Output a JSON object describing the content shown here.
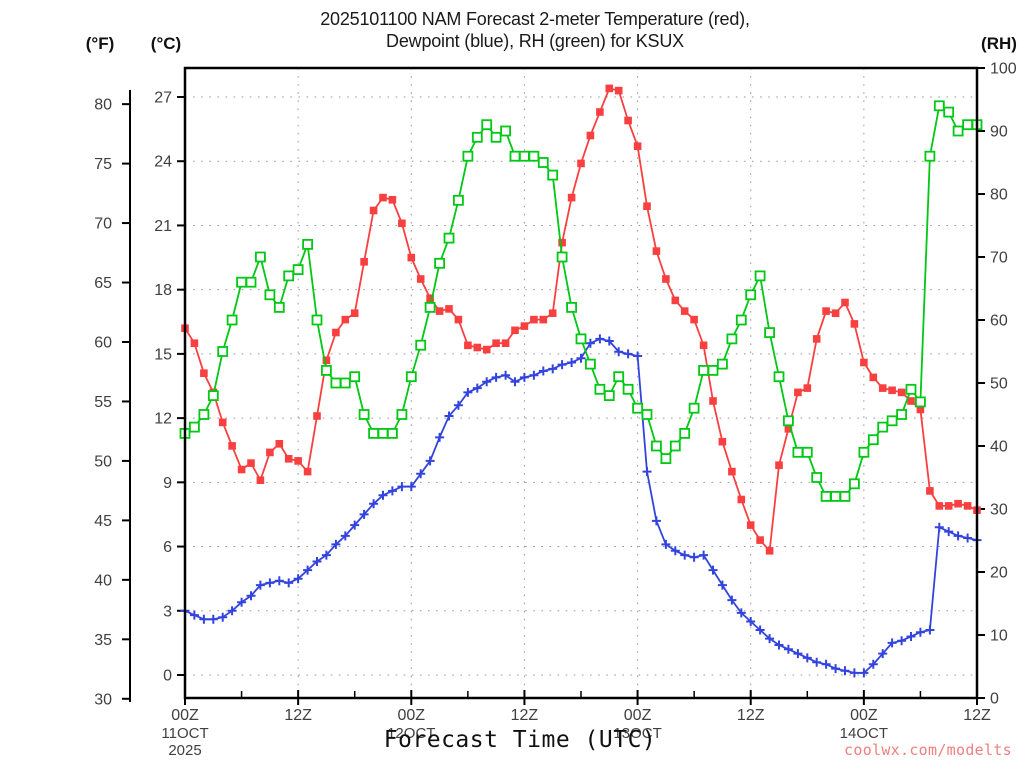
{
  "title_line1": "2025101100 NAM Forecast 2-meter Temperature (red),",
  "title_line2": "Dewpoint (blue), RH (green) for KSUX",
  "station": "KSUX",
  "model_run": "2025101100",
  "axis_headers": {
    "fahrenheit": "(°F)",
    "celsius": "(°C)",
    "rh": "(RH)"
  },
  "x_axis_title": "Forecast Time (UTC)",
  "watermark": "coolwx.com/modelts",
  "colors": {
    "temperature": "#f94040",
    "dewpoint": "#3344dd",
    "rh": "#00c814",
    "grid": "#999999",
    "axis": "#000000",
    "tick_label": "#404040",
    "watermark": "#f08080"
  },
  "chart_data": {
    "type": "line",
    "title": "2025101100 NAM Forecast 2-meter Temperature (red), Dewpoint (blue), RH (green) for KSUX",
    "x_hours_start": 0,
    "x_hours_step": 1,
    "x_hours_end": 84,
    "grid": true,
    "c_axis": {
      "min": 0,
      "max": 27,
      "step": 3,
      "ticks": [
        0,
        3,
        6,
        9,
        12,
        15,
        18,
        21,
        24,
        27
      ]
    },
    "f_axis": {
      "min": 30,
      "max": 80,
      "step": 5,
      "ticks": [
        30,
        35,
        40,
        45,
        50,
        55,
        60,
        65,
        70,
        75,
        80
      ]
    },
    "rh_axis": {
      "min": 0,
      "max": 100,
      "step": 10,
      "ticks": [
        0,
        10,
        20,
        30,
        40,
        50,
        60,
        70,
        80,
        90,
        100
      ]
    },
    "x_axis": {
      "major_hours": [
        0,
        12,
        24,
        36,
        48,
        60,
        72,
        84
      ],
      "major_labels": [
        "00Z",
        "12Z",
        "00Z",
        "12Z",
        "00Z",
        "12Z",
        "00Z",
        "12Z"
      ],
      "minor_hours": [
        6,
        18,
        30,
        42,
        54,
        66,
        78
      ],
      "date_labels": [
        {
          "text": "11OCT",
          "hour": 0
        },
        {
          "text": "12OCT",
          "hour": 24
        },
        {
          "text": "13OCT",
          "hour": 48
        },
        {
          "text": "14OCT",
          "hour": 72
        }
      ],
      "year_label": {
        "text": "2025",
        "hour": 0
      }
    },
    "series": [
      {
        "name": "2-meter Temperature",
        "unit": "C",
        "axis": "C",
        "color": "#f94040",
        "marker": "filled-square",
        "values": [
          16.2,
          15.5,
          14.1,
          13.2,
          11.8,
          10.7,
          9.6,
          9.9,
          9.1,
          10.4,
          10.8,
          10.1,
          10.0,
          9.5,
          12.1,
          14.7,
          16.0,
          16.6,
          16.9,
          19.3,
          21.7,
          22.3,
          22.2,
          21.1,
          19.5,
          18.5,
          17.6,
          17.0,
          17.1,
          16.6,
          15.4,
          15.3,
          15.2,
          15.5,
          15.5,
          16.1,
          16.3,
          16.6,
          16.6,
          16.9,
          20.2,
          22.3,
          23.9,
          25.2,
          26.3,
          27.4,
          27.3,
          25.9,
          24.7,
          21.9,
          19.8,
          18.5,
          17.5,
          17.0,
          16.6,
          15.4,
          12.8,
          10.9,
          9.5,
          8.2,
          7.0,
          6.3,
          5.8,
          9.8,
          11.5,
          13.2,
          13.4,
          15.7,
          17.0,
          16.9,
          17.4,
          16.4,
          14.6,
          13.9,
          13.4,
          13.3,
          13.2,
          12.8,
          12.4,
          8.6,
          7.9,
          7.9,
          8.0,
          7.9,
          7.7
        ]
      },
      {
        "name": "Dewpoint",
        "unit": "C",
        "axis": "C",
        "color": "#3344dd",
        "marker": "plus",
        "values": [
          3.0,
          2.8,
          2.6,
          2.6,
          2.7,
          3.0,
          3.4,
          3.7,
          4.2,
          4.3,
          4.4,
          4.3,
          4.5,
          4.9,
          5.3,
          5.6,
          6.1,
          6.5,
          7.0,
          7.5,
          8.0,
          8.4,
          8.6,
          8.8,
          8.8,
          9.4,
          10.0,
          11.1,
          12.1,
          12.6,
          13.2,
          13.4,
          13.7,
          13.9,
          14.0,
          13.7,
          13.9,
          14.0,
          14.2,
          14.3,
          14.5,
          14.6,
          14.8,
          15.5,
          15.7,
          15.6,
          15.1,
          15.0,
          14.9,
          9.5,
          7.2,
          6.1,
          5.8,
          5.6,
          5.5,
          5.6,
          4.9,
          4.2,
          3.5,
          2.9,
          2.5,
          2.1,
          1.7,
          1.4,
          1.2,
          1.0,
          0.8,
          0.6,
          0.5,
          0.3,
          0.2,
          0.1,
          0.1,
          0.5,
          1.0,
          1.5,
          1.6,
          1.8,
          2.0,
          2.1,
          6.9,
          6.7,
          6.5,
          6.4,
          6.3
        ]
      },
      {
        "name": "RH",
        "unit": "%",
        "axis": "RH",
        "color": "#00c814",
        "marker": "open-square",
        "values": [
          42,
          43,
          45,
          48,
          55,
          60,
          66,
          66,
          70,
          64,
          62,
          67,
          68,
          72,
          60,
          52,
          50,
          50,
          51,
          45,
          42,
          42,
          42,
          45,
          51,
          56,
          62,
          69,
          73,
          79,
          86,
          89,
          91,
          89,
          90,
          86,
          86,
          86,
          85,
          83,
          70,
          62,
          57,
          53,
          49,
          48,
          51,
          49,
          46,
          45,
          40,
          38,
          40,
          42,
          46,
          52,
          52,
          53,
          57,
          60,
          64,
          67,
          58,
          51,
          44,
          39,
          39,
          35,
          32,
          32,
          32,
          34,
          39,
          41,
          43,
          44,
          45,
          49,
          47,
          86,
          94,
          93,
          90,
          91,
          91
        ]
      }
    ]
  }
}
